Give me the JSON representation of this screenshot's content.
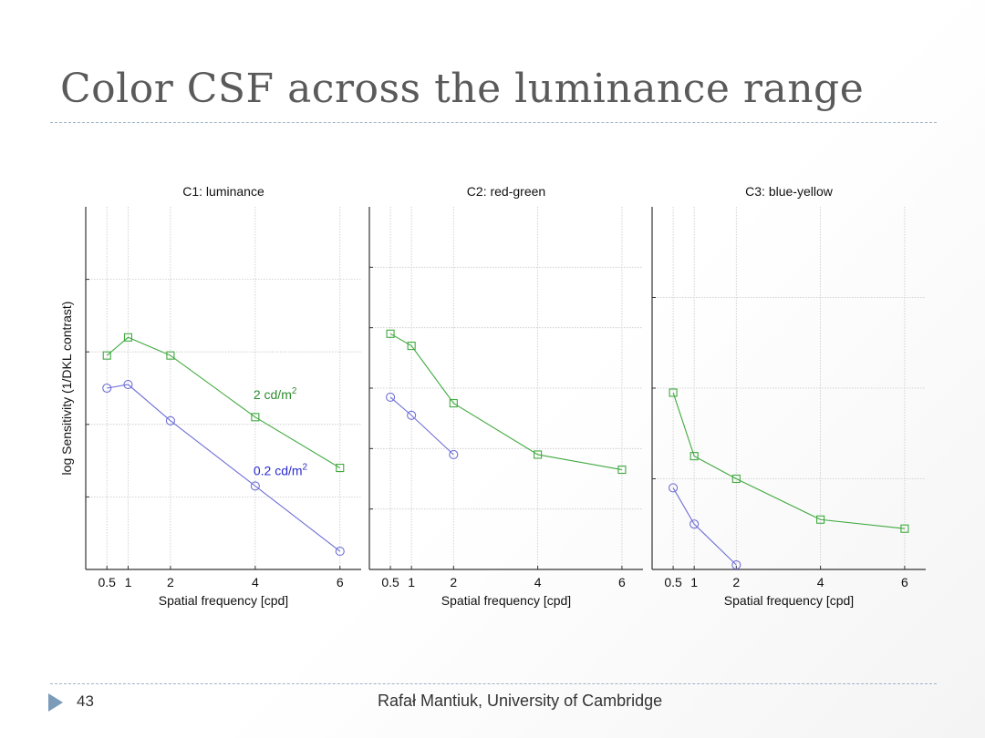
{
  "slide": {
    "title": "Color CSF across the luminance range",
    "page_number": "43",
    "footer": "Rafał Mantiuk, University of Cambridge"
  },
  "colors": {
    "high_luminance": "#3fa93f",
    "low_luminance": "#6f6fd8",
    "label_high": "#2e8b2e",
    "label_low": "#2a2ad0",
    "grid": "#c8c8c8",
    "axis": "#333333",
    "title": "#5a5a5a",
    "rule": "#9fb3c8"
  },
  "chart_data": [
    {
      "type": "line",
      "title": "C1: luminance",
      "xlabel": "Spatial frequency [cpd]",
      "ylabel": "log Sensitivity (1/DKL contrast)",
      "x_ticks": [
        0.5,
        1,
        2,
        4,
        6
      ],
      "x_tick_labels": [
        "0.5",
        "1",
        "2",
        "4",
        "6"
      ],
      "xlim": [
        0,
        6.5
      ],
      "ylim": [
        0,
        5
      ],
      "y_grid": [
        1,
        2,
        3,
        4
      ],
      "grid": true,
      "series": [
        {
          "name": "2 cd/m",
          "superscript": "2",
          "marker": "square",
          "x": [
            0.5,
            1,
            2,
            4,
            6
          ],
          "y": [
            2.95,
            3.2,
            2.95,
            2.1,
            1.4
          ]
        },
        {
          "name": "0.2 cd/m",
          "superscript": "2",
          "marker": "circle",
          "x": [
            0.5,
            1,
            2,
            4,
            6
          ],
          "y": [
            2.5,
            2.55,
            2.05,
            1.15,
            0.25
          ]
        }
      ]
    },
    {
      "type": "line",
      "title": "C2: red-green",
      "xlabel": "Spatial frequency [cpd]",
      "ylabel": "",
      "x_ticks": [
        0.5,
        1,
        2,
        4,
        6
      ],
      "x_tick_labels": [
        "0.5",
        "1",
        "2",
        "4",
        "6"
      ],
      "xlim": [
        0,
        6.5
      ],
      "ylim": [
        0,
        6
      ],
      "y_grid": [
        1,
        2,
        3,
        4,
        5
      ],
      "grid": true,
      "series": [
        {
          "name": "2 cd/m2",
          "marker": "square",
          "x": [
            0.5,
            1,
            2,
            4,
            6
          ],
          "y": [
            3.9,
            3.7,
            2.75,
            1.9,
            1.65
          ]
        },
        {
          "name": "0.2 cd/m2",
          "marker": "circle",
          "x": [
            0.5,
            1,
            2
          ],
          "y": [
            2.85,
            2.55,
            1.9
          ]
        }
      ]
    },
    {
      "type": "line",
      "title": "C3: blue-yellow",
      "xlabel": "Spatial frequency [cpd]",
      "ylabel": "",
      "x_ticks": [
        0.5,
        1,
        2,
        4,
        6
      ],
      "x_tick_labels": [
        "0.5",
        "1",
        "2",
        "4",
        "6"
      ],
      "xlim": [
        0,
        6.5
      ],
      "ylim": [
        0,
        4
      ],
      "y_grid": [
        1,
        2,
        3
      ],
      "grid": true,
      "series": [
        {
          "name": "2 cd/m2",
          "marker": "square",
          "x": [
            0.5,
            1,
            2,
            4,
            6
          ],
          "y": [
            1.95,
            1.25,
            1.0,
            0.55,
            0.45
          ]
        },
        {
          "name": "0.2 cd/m2",
          "marker": "circle",
          "x": [
            0.5,
            1,
            2
          ],
          "y": [
            0.9,
            0.5,
            0.05
          ]
        }
      ]
    }
  ]
}
